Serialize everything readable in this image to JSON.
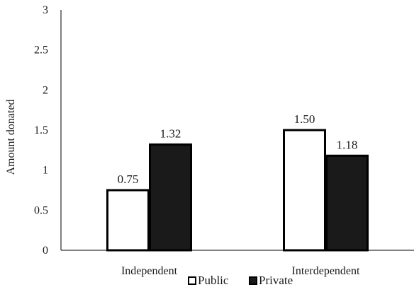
{
  "chart_data": {
    "type": "bar",
    "title": "",
    "xlabel": "",
    "ylabel": "Amount donated",
    "ylim": [
      0,
      3
    ],
    "yticks": [
      "0",
      "0.5",
      "1",
      "1.5",
      "2",
      "2.5",
      "3"
    ],
    "categories": [
      "Independent",
      "Interdependent"
    ],
    "series": [
      {
        "name": "Public",
        "values": [
          0.75,
          1.5
        ],
        "labels": [
          "0.75",
          "1.50"
        ],
        "fill": "#ffffff",
        "stroke": "#000000"
      },
      {
        "name": "Private",
        "values": [
          1.32,
          1.18
        ],
        "labels": [
          "1.32",
          "1.18"
        ],
        "fill": "#1a1a1a",
        "stroke": "#000000"
      }
    ],
    "grid": false,
    "legend_position": "bottom"
  }
}
